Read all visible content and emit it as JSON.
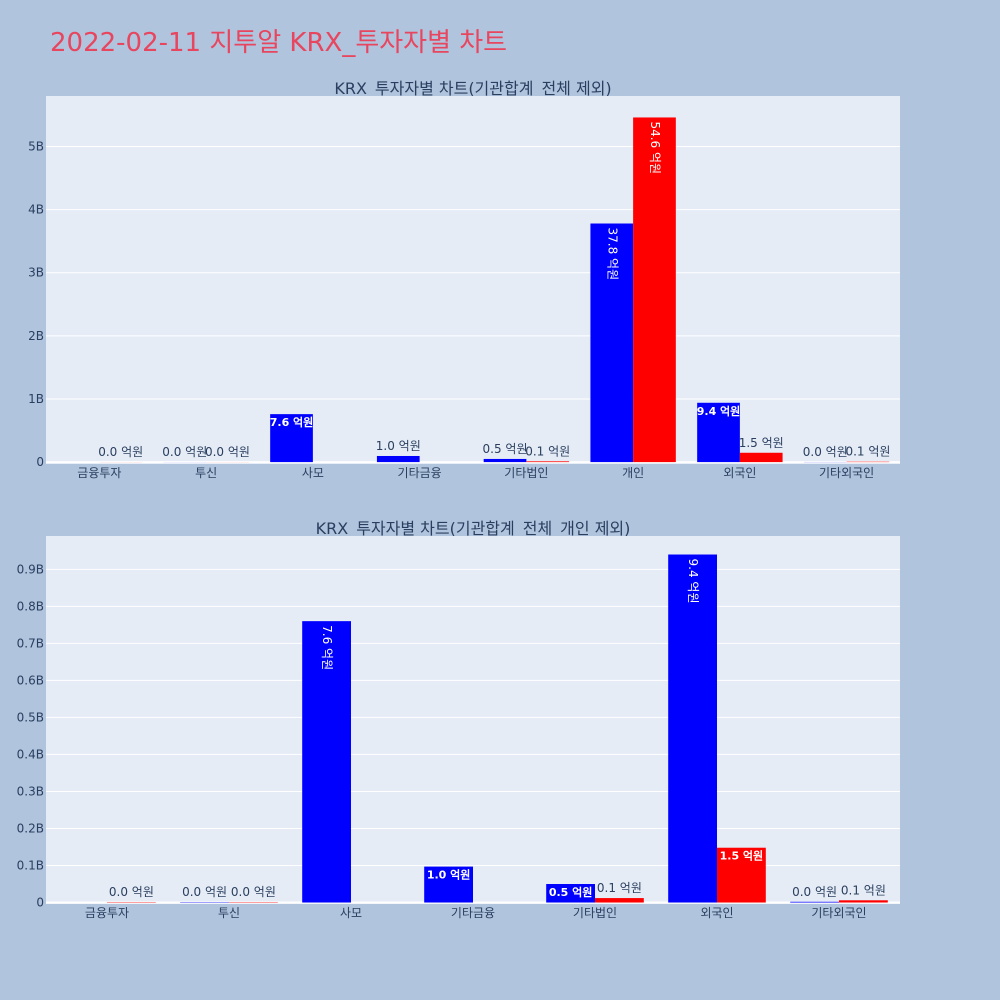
{
  "page_title": "2022-02-11 지투알 KRX_투자자별 차트",
  "colors": {
    "buy": "#0000ff",
    "sell": "#ff0000",
    "plot_bg": "#e5ecf6",
    "page_bg": "#b0c4de",
    "title": "#e8455e"
  },
  "chart_data": [
    {
      "type": "bar",
      "title": "KRX_투자자별 차트(기관합계_전체 제외)",
      "categories": [
        "금융투자",
        "투신",
        "사모",
        "기타금융",
        "기타법인",
        "개인",
        "외국인",
        "기타외국인"
      ],
      "series": [
        {
          "values": [
            0,
            0.001,
            0.76,
            0.097,
            0.05,
            3.78,
            0.94,
            0.002
          ],
          "labels": [
            "",
            "0.0 억원",
            "7.6 억원",
            "1.0 억원",
            "0.5 억원",
            "37.8 억원",
            "9.4 억원",
            "0.0 억원"
          ]
        },
        {
          "values": [
            0.001,
            0.001,
            0,
            0,
            0.012,
            5.46,
            0.148,
            0.006
          ],
          "labels": [
            "0.0 억원",
            "0.0 억원",
            "",
            "",
            "0.1 억원",
            "54.6 억원",
            "1.5 억원",
            "0.1 억원"
          ]
        }
      ],
      "yticks": [
        "0",
        "1B",
        "2B",
        "3B",
        "4B",
        "5B"
      ],
      "ytick_values": [
        0,
        1,
        2,
        3,
        4,
        5
      ],
      "ylim": [
        -0.03,
        5.8
      ],
      "grid": true
    },
    {
      "type": "bar",
      "title": "KRX_투자자별 차트(기관합계_전체_개인 제외)",
      "categories": [
        "금융투자",
        "투신",
        "사모",
        "기타금융",
        "기타법인",
        "외국인",
        "기타외국인"
      ],
      "series": [
        {
          "values": [
            0,
            0.001,
            0.76,
            0.097,
            0.05,
            0.94,
            0.002
          ],
          "labels": [
            "",
            "0.0 억원",
            "7.6 억원",
            "1.0 억원",
            "0.5 억원",
            "9.4 억원",
            "0.0 억원"
          ]
        },
        {
          "values": [
            0.001,
            0.001,
            0,
            0,
            0.012,
            0.148,
            0.006
          ],
          "labels": [
            "0.0 억원",
            "0.0 억원",
            "",
            "",
            "0.1 억원",
            "1.5 억원",
            "0.1 억원"
          ]
        }
      ],
      "yticks": [
        "0",
        "0.1B",
        "0.2B",
        "0.3B",
        "0.4B",
        "0.5B",
        "0.6B",
        "0.7B",
        "0.8B",
        "0.9B"
      ],
      "ytick_values": [
        0,
        0.1,
        0.2,
        0.3,
        0.4,
        0.5,
        0.6,
        0.7,
        0.8,
        0.9
      ],
      "ylim": [
        -0.004,
        0.99
      ],
      "grid": true
    }
  ]
}
